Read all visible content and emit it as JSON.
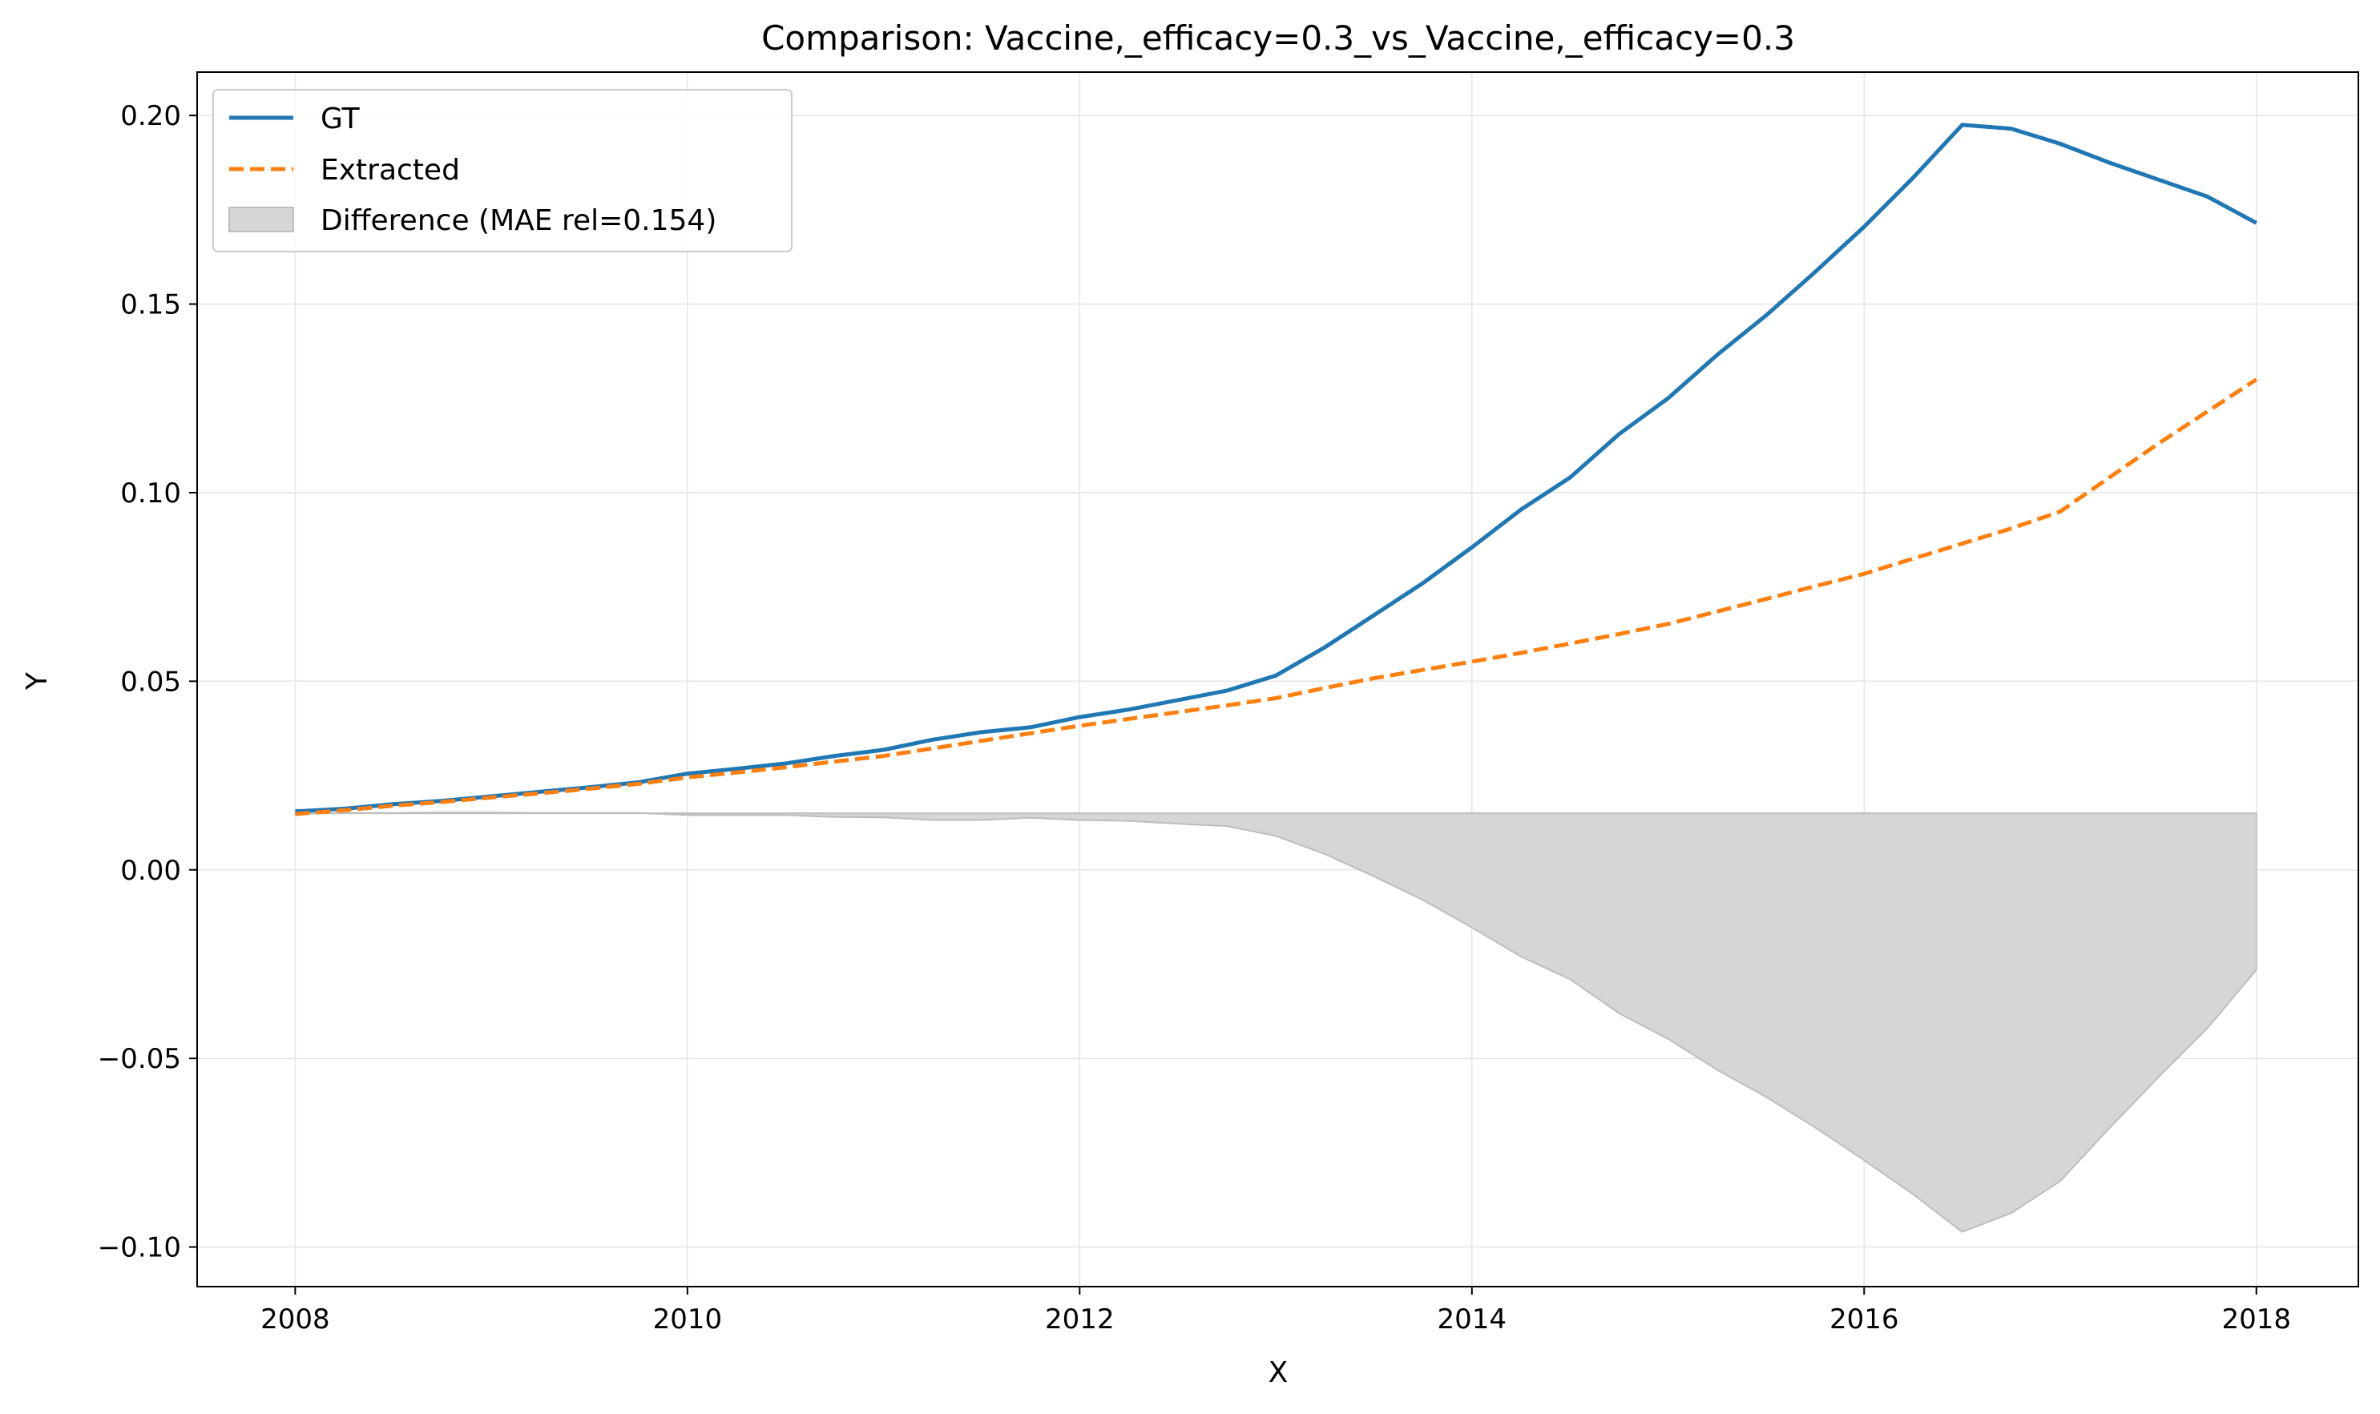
{
  "chart_data": {
    "type": "line",
    "title": "Comparison: Vaccine,_efficacy=0.3_vs_Vaccine,_efficacy=0.3",
    "xlabel": "X",
    "ylabel": "Y",
    "xlim": [
      2007.5,
      2018.52
    ],
    "ylim": [
      -0.1105,
      0.2115
    ],
    "xticks": [
      2008,
      2010,
      2012,
      2014,
      2016,
      2018
    ],
    "xtick_labels": [
      "2008",
      "2010",
      "2012",
      "2014",
      "2016",
      "2018"
    ],
    "yticks": [
      -0.1,
      -0.05,
      0.0,
      0.05,
      0.1,
      0.15,
      0.2
    ],
    "ytick_labels": [
      "−0.10",
      "−0.05",
      "0.00",
      "0.05",
      "0.10",
      "0.15",
      "0.20"
    ],
    "grid": true,
    "legend_position": "top-left",
    "x": [
      2008.0,
      2008.25,
      2008.5,
      2008.75,
      2009.0,
      2009.25,
      2009.5,
      2009.75,
      2010.0,
      2010.25,
      2010.5,
      2010.75,
      2011.0,
      2011.25,
      2011.5,
      2011.75,
      2012.0,
      2012.25,
      2012.5,
      2012.75,
      2013.0,
      2013.25,
      2013.5,
      2013.75,
      2014.0,
      2014.25,
      2014.5,
      2014.75,
      2015.0,
      2015.25,
      2015.5,
      2015.75,
      2016.0,
      2016.25,
      2016.5,
      2016.75,
      2017.0,
      2017.25,
      2017.5,
      2017.75,
      2018.0
    ],
    "series": [
      {
        "name": "GT",
        "color": "#1f77b4",
        "style": "solid",
        "values": [
          0.0155,
          0.0162,
          0.0174,
          0.0183,
          0.0195,
          0.0207,
          0.0219,
          0.0232,
          0.0255,
          0.0268,
          0.0282,
          0.0302,
          0.0318,
          0.0345,
          0.0365,
          0.0378,
          0.0405,
          0.0425,
          0.045,
          0.0475,
          0.0515,
          0.059,
          0.0675,
          0.076,
          0.0855,
          0.0955,
          0.104,
          0.1155,
          0.125,
          0.1365,
          0.147,
          0.1585,
          0.1705,
          0.1835,
          0.1975,
          0.1965,
          0.1925,
          0.1875,
          0.183,
          0.1785,
          0.1715
        ]
      },
      {
        "name": "Extracted",
        "color": "#ff7f0e",
        "style": "dashed",
        "values": [
          0.0148,
          0.0158,
          0.017,
          0.018,
          0.0192,
          0.0203,
          0.0215,
          0.0228,
          0.0245,
          0.0258,
          0.0272,
          0.0287,
          0.0302,
          0.0322,
          0.0342,
          0.0362,
          0.0382,
          0.04,
          0.0418,
          0.0436,
          0.0455,
          0.0482,
          0.0508,
          0.053,
          0.0552,
          0.0575,
          0.06,
          0.0625,
          0.0652,
          0.0685,
          0.0718,
          0.0752,
          0.0785,
          0.0825,
          0.0865,
          0.0905,
          0.095,
          0.104,
          0.113,
          0.1215,
          0.13
        ]
      }
    ],
    "fill": {
      "name": "Difference (MAE rel=0.154)",
      "color": "#d6d6d6",
      "edge_color": "#bdbdbd",
      "baseline": 0.015,
      "lower_values": [
        0.0148,
        0.0151,
        0.0151,
        0.0152,
        0.0152,
        0.0151,
        0.0151,
        0.0151,
        0.0145,
        0.0145,
        0.0145,
        0.014,
        0.0139,
        0.0132,
        0.0132,
        0.0138,
        0.0132,
        0.013,
        0.0122,
        0.0116,
        0.009,
        0.0042,
        -0.0017,
        -0.008,
        -0.0153,
        -0.023,
        -0.029,
        -0.038,
        -0.0448,
        -0.053,
        -0.0602,
        -0.0683,
        -0.077,
        -0.086,
        -0.096,
        -0.091,
        -0.0825,
        -0.0685,
        -0.055,
        -0.042,
        -0.0265
      ]
    }
  }
}
